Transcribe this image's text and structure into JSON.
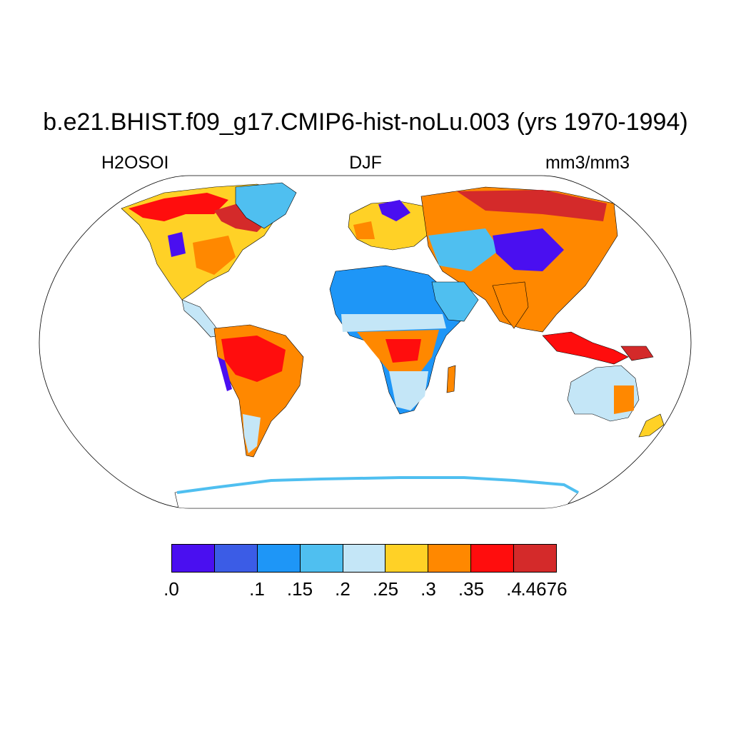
{
  "title": "b.e21.BHIST.f09_g17.CMIP6-hist-noLu.003 (yrs 1970-1994)",
  "variable": "H2OSOI",
  "season": "DJF",
  "units": "mm3/mm3",
  "colorbar": {
    "colors": [
      "#4a0ff0",
      "#3b5ce6",
      "#1e96f7",
      "#4fbff0",
      "#c4e6f7",
      "#ffd126",
      "#ff8800",
      "#ff0d0d",
      "#d42a2a"
    ],
    "labels": [
      ".0",
      ".1",
      ".15",
      ".2",
      ".25",
      ".3",
      ".35",
      ".4",
      ".4676"
    ],
    "boundaries": [
      0,
      0.1,
      0.15,
      0.2,
      0.25,
      0.3,
      0.35,
      0.4,
      0.4676
    ]
  }
}
